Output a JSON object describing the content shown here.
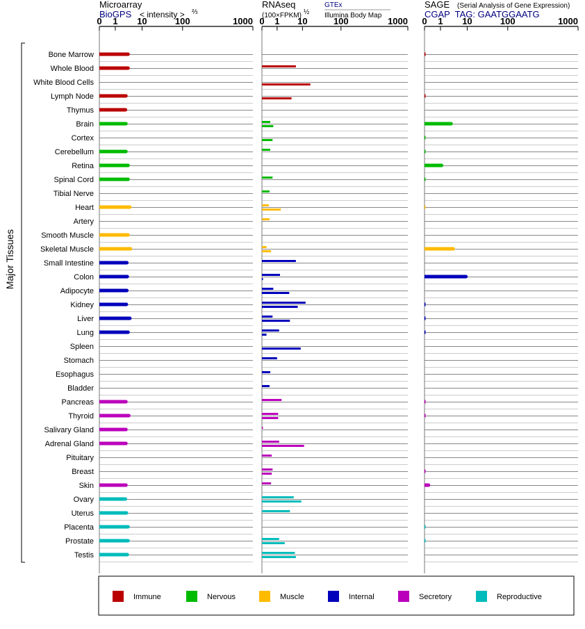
{
  "colors": {
    "Immune": "#bb0000",
    "Nervous": "#00bb00",
    "Muscle": "#ffbb00",
    "Internal": "#0000bb",
    "Secretory": "#bb00bb",
    "Reproductive": "#00bbbb",
    "blue_text": "#000080"
  },
  "side_label": "Major Tissues",
  "panels": {
    "microarray": {
      "title": "Microarray",
      "source": "BioGPS",
      "scale_label_main": "< intensity >",
      "scale_label_exp": "⅔"
    },
    "rnaseq": {
      "title": "RNAseq",
      "scale_label_main": "(100×FPKM)",
      "scale_label_exp": "½",
      "source_top": "GTEx",
      "source_bottom": "Illumina Body Map"
    },
    "sage": {
      "title": "SAGE",
      "subtitle": "(Serial Analysis of Gene Expression)",
      "tag_line": "CGAP  TAG: GAATGGAATG"
    }
  },
  "chart_data": {
    "type": "bar",
    "axis_ticks": [
      "0",
      "1",
      "10",
      "100",
      "1000"
    ],
    "axis_tick_values": [
      0,
      1,
      10,
      100,
      1000
    ],
    "legend": [
      {
        "name": "Immune"
      },
      {
        "name": "Nervous"
      },
      {
        "name": "Muscle"
      },
      {
        "name": "Internal"
      },
      {
        "name": "Secretory"
      },
      {
        "name": "Reproductive"
      }
    ],
    "tissues": [
      {
        "name": "Bone Marrow",
        "group": "Immune",
        "microarray": 3.0,
        "gtex": null,
        "ibm": null,
        "sage": 0.02
      },
      {
        "name": "Whole Blood",
        "group": "Immune",
        "microarray": 3.0,
        "gtex": 5.5,
        "ibm": null,
        "sage": null
      },
      {
        "name": "White Blood Cells",
        "group": "Immune",
        "microarray": null,
        "gtex": null,
        "ibm": 16,
        "sage": null
      },
      {
        "name": "Lymph Node",
        "group": "Immune",
        "microarray": 2.5,
        "gtex": null,
        "ibm": 3.7,
        "sage": 0.02
      },
      {
        "name": "Thymus",
        "group": "Immune",
        "microarray": 2.4,
        "gtex": null,
        "ibm": null,
        "sage": null
      },
      {
        "name": "Brain",
        "group": "Nervous",
        "microarray": 2.5,
        "gtex": 0.55,
        "ibm": 0.75,
        "sage": 2.5
      },
      {
        "name": "Cortex",
        "group": "Nervous",
        "microarray": null,
        "gtex": null,
        "ibm": 0.7,
        "sage": 0.01
      },
      {
        "name": "Cerebellum",
        "group": "Nervous",
        "microarray": 2.5,
        "gtex": 0.55,
        "ibm": null,
        "sage": 0.01
      },
      {
        "name": "Retina",
        "group": "Nervous",
        "microarray": 3.0,
        "gtex": null,
        "ibm": null,
        "sage": 1.1
      },
      {
        "name": "Spinal Cord",
        "group": "Nervous",
        "microarray": 3.0,
        "gtex": 0.7,
        "ibm": null,
        "sage": 0.01
      },
      {
        "name": "Tibial Nerve",
        "group": "Nervous",
        "microarray": null,
        "gtex": 0.5,
        "ibm": null,
        "sage": null
      },
      {
        "name": "Heart",
        "group": "Muscle",
        "microarray": 3.5,
        "gtex": 0.45,
        "ibm": 1.4,
        "sage": 0.005
      },
      {
        "name": "Artery",
        "group": "Muscle",
        "microarray": null,
        "gtex": 0.5,
        "ibm": null,
        "sage": null
      },
      {
        "name": "Smooth Muscle",
        "group": "Muscle",
        "microarray": 3.0,
        "gtex": null,
        "ibm": null,
        "sage": null
      },
      {
        "name": "Skeletal Muscle",
        "group": "Muscle",
        "microarray": 3.7,
        "gtex": 0.3,
        "ibm": 0.6,
        "sage": 3.0
      },
      {
        "name": "Small Intestine",
        "group": "Internal",
        "microarray": 2.7,
        "gtex": 5.5,
        "ibm": null,
        "sage": null
      },
      {
        "name": "Colon",
        "group": "Internal",
        "microarray": 2.8,
        "gtex": 1.3,
        "ibm": 0.02,
        "sage": 9.0
      },
      {
        "name": "Adipocyte",
        "group": "Internal",
        "microarray": 2.7,
        "gtex": 0.75,
        "ibm": 3.0,
        "sage": null
      },
      {
        "name": "Kidney",
        "group": "Internal",
        "microarray": 2.6,
        "gtex": 12,
        "ibm": 6.5,
        "sage": 0.02
      },
      {
        "name": "Liver",
        "group": "Internal",
        "microarray": 3.5,
        "gtex": 0.7,
        "ibm": 3.2,
        "sage": 0.02
      },
      {
        "name": "Lung",
        "group": "Internal",
        "microarray": 3.0,
        "gtex": 1.2,
        "ibm": 0.3,
        "sage": 0.02
      },
      {
        "name": "Spleen",
        "group": "Internal",
        "microarray": null,
        "gtex": null,
        "ibm": 8.5,
        "sage": null
      },
      {
        "name": "Stomach",
        "group": "Internal",
        "microarray": null,
        "gtex": 1.0,
        "ibm": null,
        "sage": null
      },
      {
        "name": "Esophagus",
        "group": "Internal",
        "microarray": null,
        "gtex": 0.55,
        "ibm": null,
        "sage": null
      },
      {
        "name": "Bladder",
        "group": "Internal",
        "microarray": null,
        "gtex": 0.5,
        "ibm": null,
        "sage": null
      },
      {
        "name": "Pancreas",
        "group": "Secretory",
        "microarray": 2.5,
        "gtex": 1.5,
        "ibm": null,
        "sage": 0.02
      },
      {
        "name": "Thyroid",
        "group": "Secretory",
        "microarray": 3.2,
        "gtex": 1.1,
        "ibm": 1.1,
        "sage": 0.02
      },
      {
        "name": "Salivary Gland",
        "group": "Secretory",
        "microarray": 2.5,
        "gtex": 0.02,
        "ibm": null,
        "sage": null
      },
      {
        "name": "Adrenal Gland",
        "group": "Secretory",
        "microarray": 2.5,
        "gtex": 1.2,
        "ibm": 11,
        "sage": null
      },
      {
        "name": "Pituitary",
        "group": "Secretory",
        "microarray": null,
        "gtex": 0.65,
        "ibm": null,
        "sage": null
      },
      {
        "name": "Breast",
        "group": "Secretory",
        "microarray": null,
        "gtex": 0.7,
        "ibm": 0.65,
        "sage": 0.02
      },
      {
        "name": "Skin",
        "group": "Secretory",
        "microarray": 2.5,
        "gtex": 0.6,
        "ibm": null,
        "sage": 0.25
      },
      {
        "name": "Ovary",
        "group": "Reproductive",
        "microarray": 2.4,
        "gtex": 4.5,
        "ibm": 9.0,
        "sage": null
      },
      {
        "name": "Uterus",
        "group": "Reproductive",
        "microarray": 2.6,
        "gtex": 3.2,
        "ibm": null,
        "sage": null
      },
      {
        "name": "Placenta",
        "group": "Reproductive",
        "microarray": 3.0,
        "gtex": null,
        "ibm": null,
        "sage": 0.01
      },
      {
        "name": "Prostate",
        "group": "Reproductive",
        "microarray": 3.0,
        "gtex": 1.2,
        "ibm": 2.0,
        "sage": 0.01
      },
      {
        "name": "Testis",
        "group": "Reproductive",
        "microarray": 2.8,
        "gtex": 5.0,
        "ibm": 5.5,
        "sage": null
      }
    ]
  }
}
